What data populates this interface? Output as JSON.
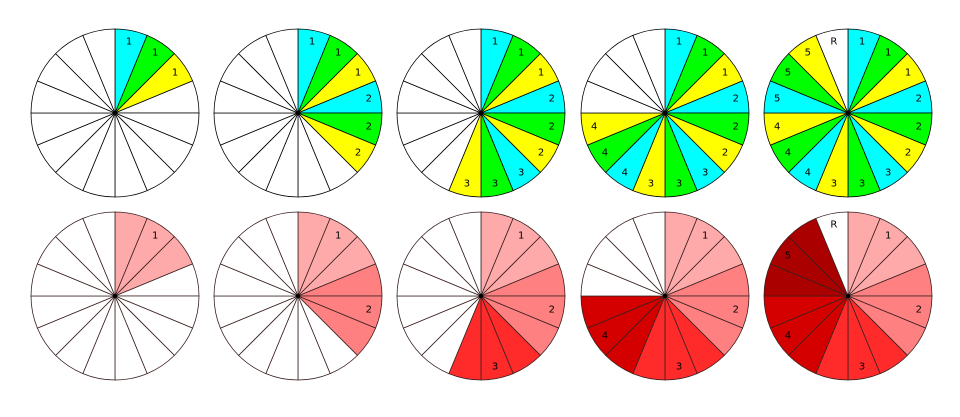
{
  "sectors_per_wheel": 16,
  "top_row": {
    "colors": [
      "#00ffff",
      "#00ff00",
      "#ffff00"
    ],
    "label_mode": "every-sector",
    "wheels": [
      {
        "groups": [
          "1"
        ]
      },
      {
        "groups": [
          "1",
          "2"
        ]
      },
      {
        "groups": [
          "1",
          "2",
          "3"
        ]
      },
      {
        "groups": [
          "1",
          "2",
          "3",
          "4"
        ]
      },
      {
        "groups": [
          "1",
          "2",
          "3",
          "4",
          "5"
        ],
        "remainder": "R"
      }
    ]
  },
  "bottom_row": {
    "group_colors": [
      "#ffaaaa",
      "#ff8080",
      "#ff2a2a",
      "#d40000",
      "#aa0000"
    ],
    "label_mode": "middle-sector",
    "wheels": [
      {
        "groups": [
          "1"
        ]
      },
      {
        "groups": [
          "1",
          "2"
        ]
      },
      {
        "groups": [
          "1",
          "2",
          "3"
        ]
      },
      {
        "groups": [
          "1",
          "2",
          "3",
          "4"
        ]
      },
      {
        "groups": [
          "1",
          "2",
          "3",
          "4",
          "5"
        ],
        "remainder": "R"
      }
    ]
  }
}
